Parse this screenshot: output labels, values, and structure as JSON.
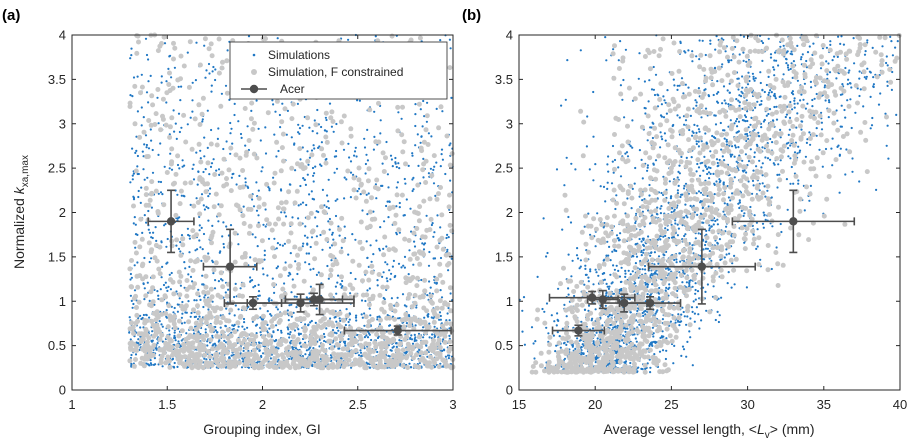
{
  "colors": {
    "simulations": "#1f77c4",
    "simulations_constrained": "#c8c8c8",
    "acer": "#4d4d4d",
    "axis": "#262626"
  },
  "chart_data": [
    {
      "panel_label": "(a)",
      "type": "scatter",
      "xlabel": "Grouping index, GI",
      "ylabel_parts": [
        "Normalized ",
        "k",
        "xa,max"
      ],
      "xlim": [
        1,
        3
      ],
      "ylim": [
        0,
        4
      ],
      "xticks": [
        1,
        1.5,
        2,
        2.5,
        3
      ],
      "yticks": [
        0,
        0.5,
        1,
        1.5,
        2,
        2.5,
        3,
        3.5,
        4
      ],
      "xtick_labels": [
        "1",
        "1.5",
        "2",
        "2.5",
        "3"
      ],
      "ytick_labels": [
        "0",
        "0.5",
        "1",
        "1.5",
        "2",
        "2.5",
        "3",
        "3.5",
        "4"
      ],
      "legend": {
        "position": "top-right",
        "entries": [
          "Simulations",
          "Simulation, F constrained",
          "Acer"
        ]
      },
      "series": [
        {
          "name": "Simulations",
          "kind": "cloud",
          "color_key": "simulations"
        },
        {
          "name": "Simulation, F constrained",
          "kind": "cloud",
          "color_key": "simulations_constrained"
        },
        {
          "name": "Acer",
          "kind": "errorbar",
          "points": [
            {
              "x": 1.52,
              "y": 1.9,
              "xerr": 0.12,
              "yerr": 0.35
            },
            {
              "x": 1.83,
              "y": 1.39,
              "xerr": 0.14,
              "yerr": 0.42
            },
            {
              "x": 1.95,
              "y": 0.98,
              "xerr": 0.15,
              "yerr": 0.07
            },
            {
              "x": 2.2,
              "y": 0.98,
              "xerr": 0.28,
              "yerr": 0.1
            },
            {
              "x": 2.27,
              "y": 1.02,
              "xerr": 0.15,
              "yerr": 0.07
            },
            {
              "x": 2.3,
              "y": 1.02,
              "xerr": 0.18,
              "yerr": 0.17
            },
            {
              "x": 2.71,
              "y": 0.67,
              "xerr": 0.28,
              "yerr": 0.05
            }
          ]
        }
      ]
    },
    {
      "panel_label": "(b)",
      "type": "scatter",
      "xlabel_parts": [
        "Average vessel length, <",
        "L",
        "v",
        "> (mm)"
      ],
      "xlim": [
        15,
        40
      ],
      "ylim": [
        0,
        4
      ],
      "xticks": [
        15,
        20,
        25,
        30,
        35,
        40
      ],
      "yticks": [
        0,
        0.5,
        1,
        1.5,
        2,
        2.5,
        3,
        3.5,
        4
      ],
      "xtick_labels": [
        "15",
        "20",
        "25",
        "30",
        "35",
        "40"
      ],
      "ytick_labels": [
        "0",
        "0.5",
        "1",
        "1.5",
        "2",
        "2.5",
        "3",
        "3.5",
        "4"
      ],
      "series": [
        {
          "name": "Simulations",
          "kind": "cloud",
          "color_key": "simulations"
        },
        {
          "name": "Simulation, F constrained",
          "kind": "cloud",
          "color_key": "simulations_constrained"
        },
        {
          "name": "Acer",
          "kind": "errorbar",
          "points": [
            {
              "x": 33.0,
              "y": 1.9,
              "xerr": 4.0,
              "yerr": 0.35
            },
            {
              "x": 27.0,
              "y": 1.39,
              "xerr": 3.5,
              "yerr": 0.42
            },
            {
              "x": 23.6,
              "y": 0.98,
              "xerr": 2.0,
              "yerr": 0.07
            },
            {
              "x": 21.9,
              "y": 0.98,
              "xerr": 1.5,
              "yerr": 0.1
            },
            {
              "x": 20.5,
              "y": 1.02,
              "xerr": 1.0,
              "yerr": 0.1
            },
            {
              "x": 19.8,
              "y": 1.04,
              "xerr": 2.8,
              "yerr": 0.07
            },
            {
              "x": 18.9,
              "y": 0.67,
              "xerr": 1.7,
              "yerr": 0.06
            }
          ]
        }
      ]
    }
  ]
}
